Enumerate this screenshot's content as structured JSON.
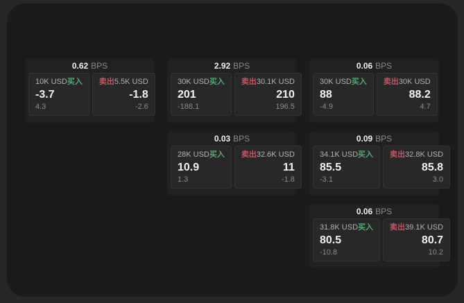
{
  "labels": {
    "bps_unit": "BPS",
    "buy": "买入",
    "sell": "卖出"
  },
  "colors": {
    "page_bg": "#272727",
    "window_bg": "#1b1b1b",
    "card_bg": "#212121",
    "panel_bg": "#282828",
    "buy_green": "#55a874",
    "sell_red": "#c25562"
  },
  "cards": [
    {
      "bps": "0.62",
      "buy": {
        "amount": "10K USD",
        "price": "-3.7",
        "delta": "4.3"
      },
      "sell": {
        "amount": "5.5K USD",
        "price": "-1.8",
        "delta": "-2.6"
      }
    },
    {
      "bps": "2.92",
      "buy": {
        "amount": "30K USD",
        "price": "201",
        "delta": "-188.1"
      },
      "sell": {
        "amount": "30.1K USD",
        "price": "210",
        "delta": "196.5"
      }
    },
    {
      "bps": "0.06",
      "buy": {
        "amount": "30K USD",
        "price": "88",
        "delta": "-4.9"
      },
      "sell": {
        "amount": "30K USD",
        "price": "88.2",
        "delta": "4.7"
      }
    },
    {
      "bps": "0.03",
      "buy": {
        "amount": "28K USD",
        "price": "10.9",
        "delta": "1.3"
      },
      "sell": {
        "amount": "32.6K USD",
        "price": "11",
        "delta": "-1.8"
      }
    },
    {
      "bps": "0.09",
      "buy": {
        "amount": "34.1K USD",
        "price": "85.5",
        "delta": "-3.1"
      },
      "sell": {
        "amount": "32.8K USD",
        "price": "85.8",
        "delta": "3.0"
      }
    },
    {
      "bps": "0.06",
      "buy": {
        "amount": "31.8K USD",
        "price": "80.5",
        "delta": "-10.8"
      },
      "sell": {
        "amount": "39.1K USD",
        "price": "80.7",
        "delta": "10.2"
      }
    }
  ]
}
